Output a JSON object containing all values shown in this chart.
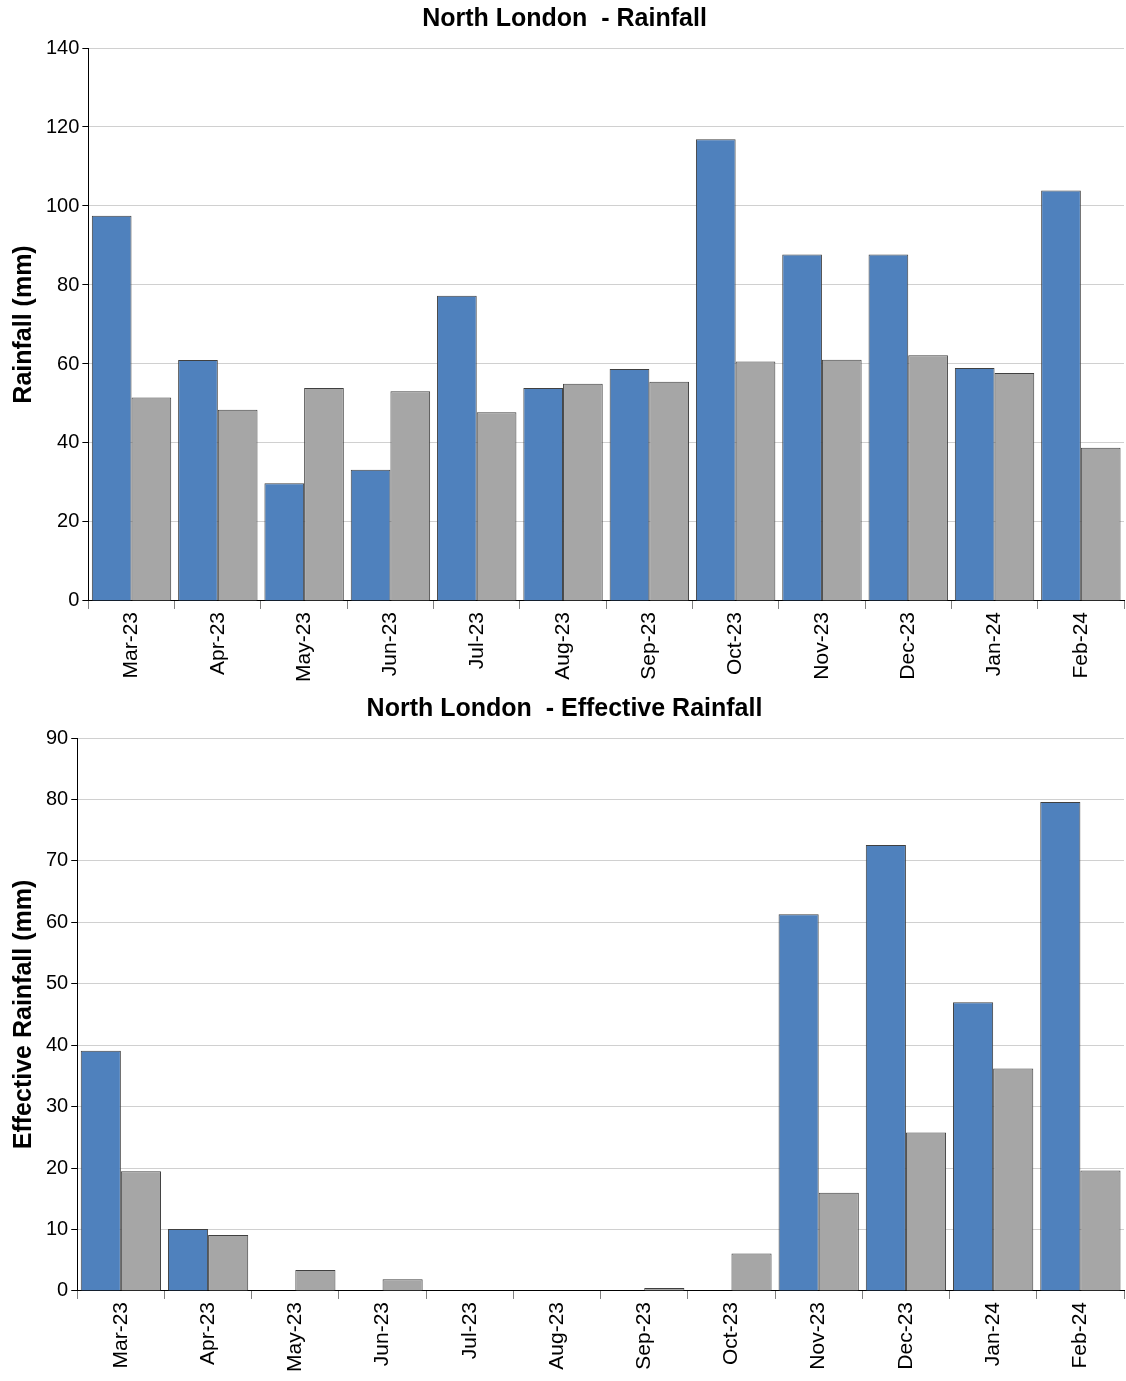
{
  "chart_data": [
    {
      "type": "bar",
      "title": "North London  - Rainfall",
      "ylabel": "Rainfall (mm)",
      "categories": [
        "Mar-23",
        "Apr-23",
        "May-23",
        "Jun-23",
        "Jul-23",
        "Aug-23",
        "Sep-23",
        "Oct-23",
        "Nov-23",
        "Dec-23",
        "Jan-24",
        "Feb-24"
      ],
      "series": [
        {
          "color": "#4f81bd",
          "values": [
            97.5,
            61,
            29.8,
            33.2,
            77.3,
            53.9,
            58.7,
            116.9,
            87.7,
            87.7,
            59,
            103.9
          ]
        },
        {
          "color": "#a6a6a6",
          "values": [
            51.5,
            48.4,
            53.9,
            53.1,
            47.8,
            55,
            55.5,
            60.6,
            61.1,
            62.2,
            57.7,
            38.8
          ]
        }
      ],
      "ylim": [
        0,
        140
      ],
      "yticks": [
        0,
        20,
        40,
        60,
        80,
        100,
        120,
        140
      ],
      "grid": "y",
      "legend": false
    },
    {
      "type": "bar",
      "title": "North London  - Effective Rainfall",
      "ylabel": "Effective Rainfall (mm)",
      "categories": [
        "Mar-23",
        "Apr-23",
        "May-23",
        "Jun-23",
        "Jul-23",
        "Aug-23",
        "Sep-23",
        "Oct-23",
        "Nov-23",
        "Dec-23",
        "Jan-24",
        "Feb-24"
      ],
      "series": [
        {
          "color": "#4f81bd",
          "values": [
            39.1,
            10.1,
            0,
            0,
            0,
            0,
            0,
            0,
            61.3,
            72.6,
            47,
            79.6
          ]
        },
        {
          "color": "#a6a6a6",
          "values": [
            19.5,
            9.1,
            3.4,
            1.9,
            0,
            0,
            0.5,
            6.1,
            16,
            25.8,
            36.2,
            19.6
          ]
        }
      ],
      "ylim": [
        0,
        90
      ],
      "yticks": [
        0,
        10,
        20,
        30,
        40,
        50,
        60,
        70,
        80,
        90
      ],
      "grid": "y",
      "legend": false
    }
  ]
}
